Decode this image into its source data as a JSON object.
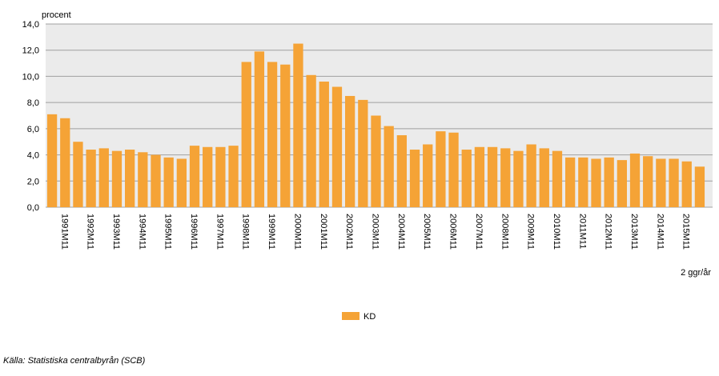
{
  "chart_data": {
    "type": "bar",
    "y_label": "procent",
    "x_note": "2 ggr/år",
    "source": "Källa: Statistiska centralbyrån (SCB)",
    "categories": [
      null,
      "1991M11",
      null,
      "1992M11",
      null,
      "1993M11",
      null,
      "1994M11",
      null,
      "1995M11",
      null,
      "1996M11",
      null,
      "1997M11",
      null,
      "1998M11",
      null,
      "1999M11",
      null,
      "2000M11",
      null,
      "2001M11",
      null,
      "2002M11",
      null,
      "2003M11",
      null,
      "2004M11",
      null,
      "2005M11",
      null,
      "2006M11",
      null,
      "2007M11",
      null,
      "2008M11",
      null,
      "2009M11",
      null,
      "2010M11",
      null,
      "2011M11",
      null,
      "2012M11",
      null,
      "2013M11",
      null,
      "2014M11",
      null,
      "2015M11",
      null
    ],
    "series": [
      {
        "name": "KD",
        "color": "#f5a336",
        "values": [
          7.1,
          6.8,
          5.0,
          4.4,
          4.5,
          4.3,
          4.4,
          4.2,
          4.0,
          3.8,
          3.7,
          4.7,
          4.6,
          4.6,
          4.7,
          11.1,
          11.9,
          11.1,
          10.9,
          12.5,
          10.1,
          9.6,
          9.2,
          8.5,
          8.2,
          7.0,
          6.2,
          5.5,
          4.4,
          4.8,
          5.8,
          5.7,
          4.4,
          4.6,
          4.6,
          4.5,
          4.3,
          4.8,
          4.5,
          4.3,
          3.8,
          3.8,
          3.7,
          3.8,
          3.6,
          4.1,
          3.9,
          3.7,
          3.7,
          3.5,
          3.1
        ]
      }
    ],
    "ylim": [
      0,
      14
    ],
    "yticks": [
      {
        "value": 0,
        "label": "0,0"
      },
      {
        "value": 2,
        "label": "2,0"
      },
      {
        "value": 4,
        "label": "4,0"
      },
      {
        "value": 6,
        "label": "6,0"
      },
      {
        "value": 8,
        "label": "8,0"
      },
      {
        "value": 10,
        "label": "10,0"
      },
      {
        "value": 12,
        "label": "12,0"
      },
      {
        "value": 14,
        "label": "14,0"
      }
    ],
    "grid": true
  }
}
